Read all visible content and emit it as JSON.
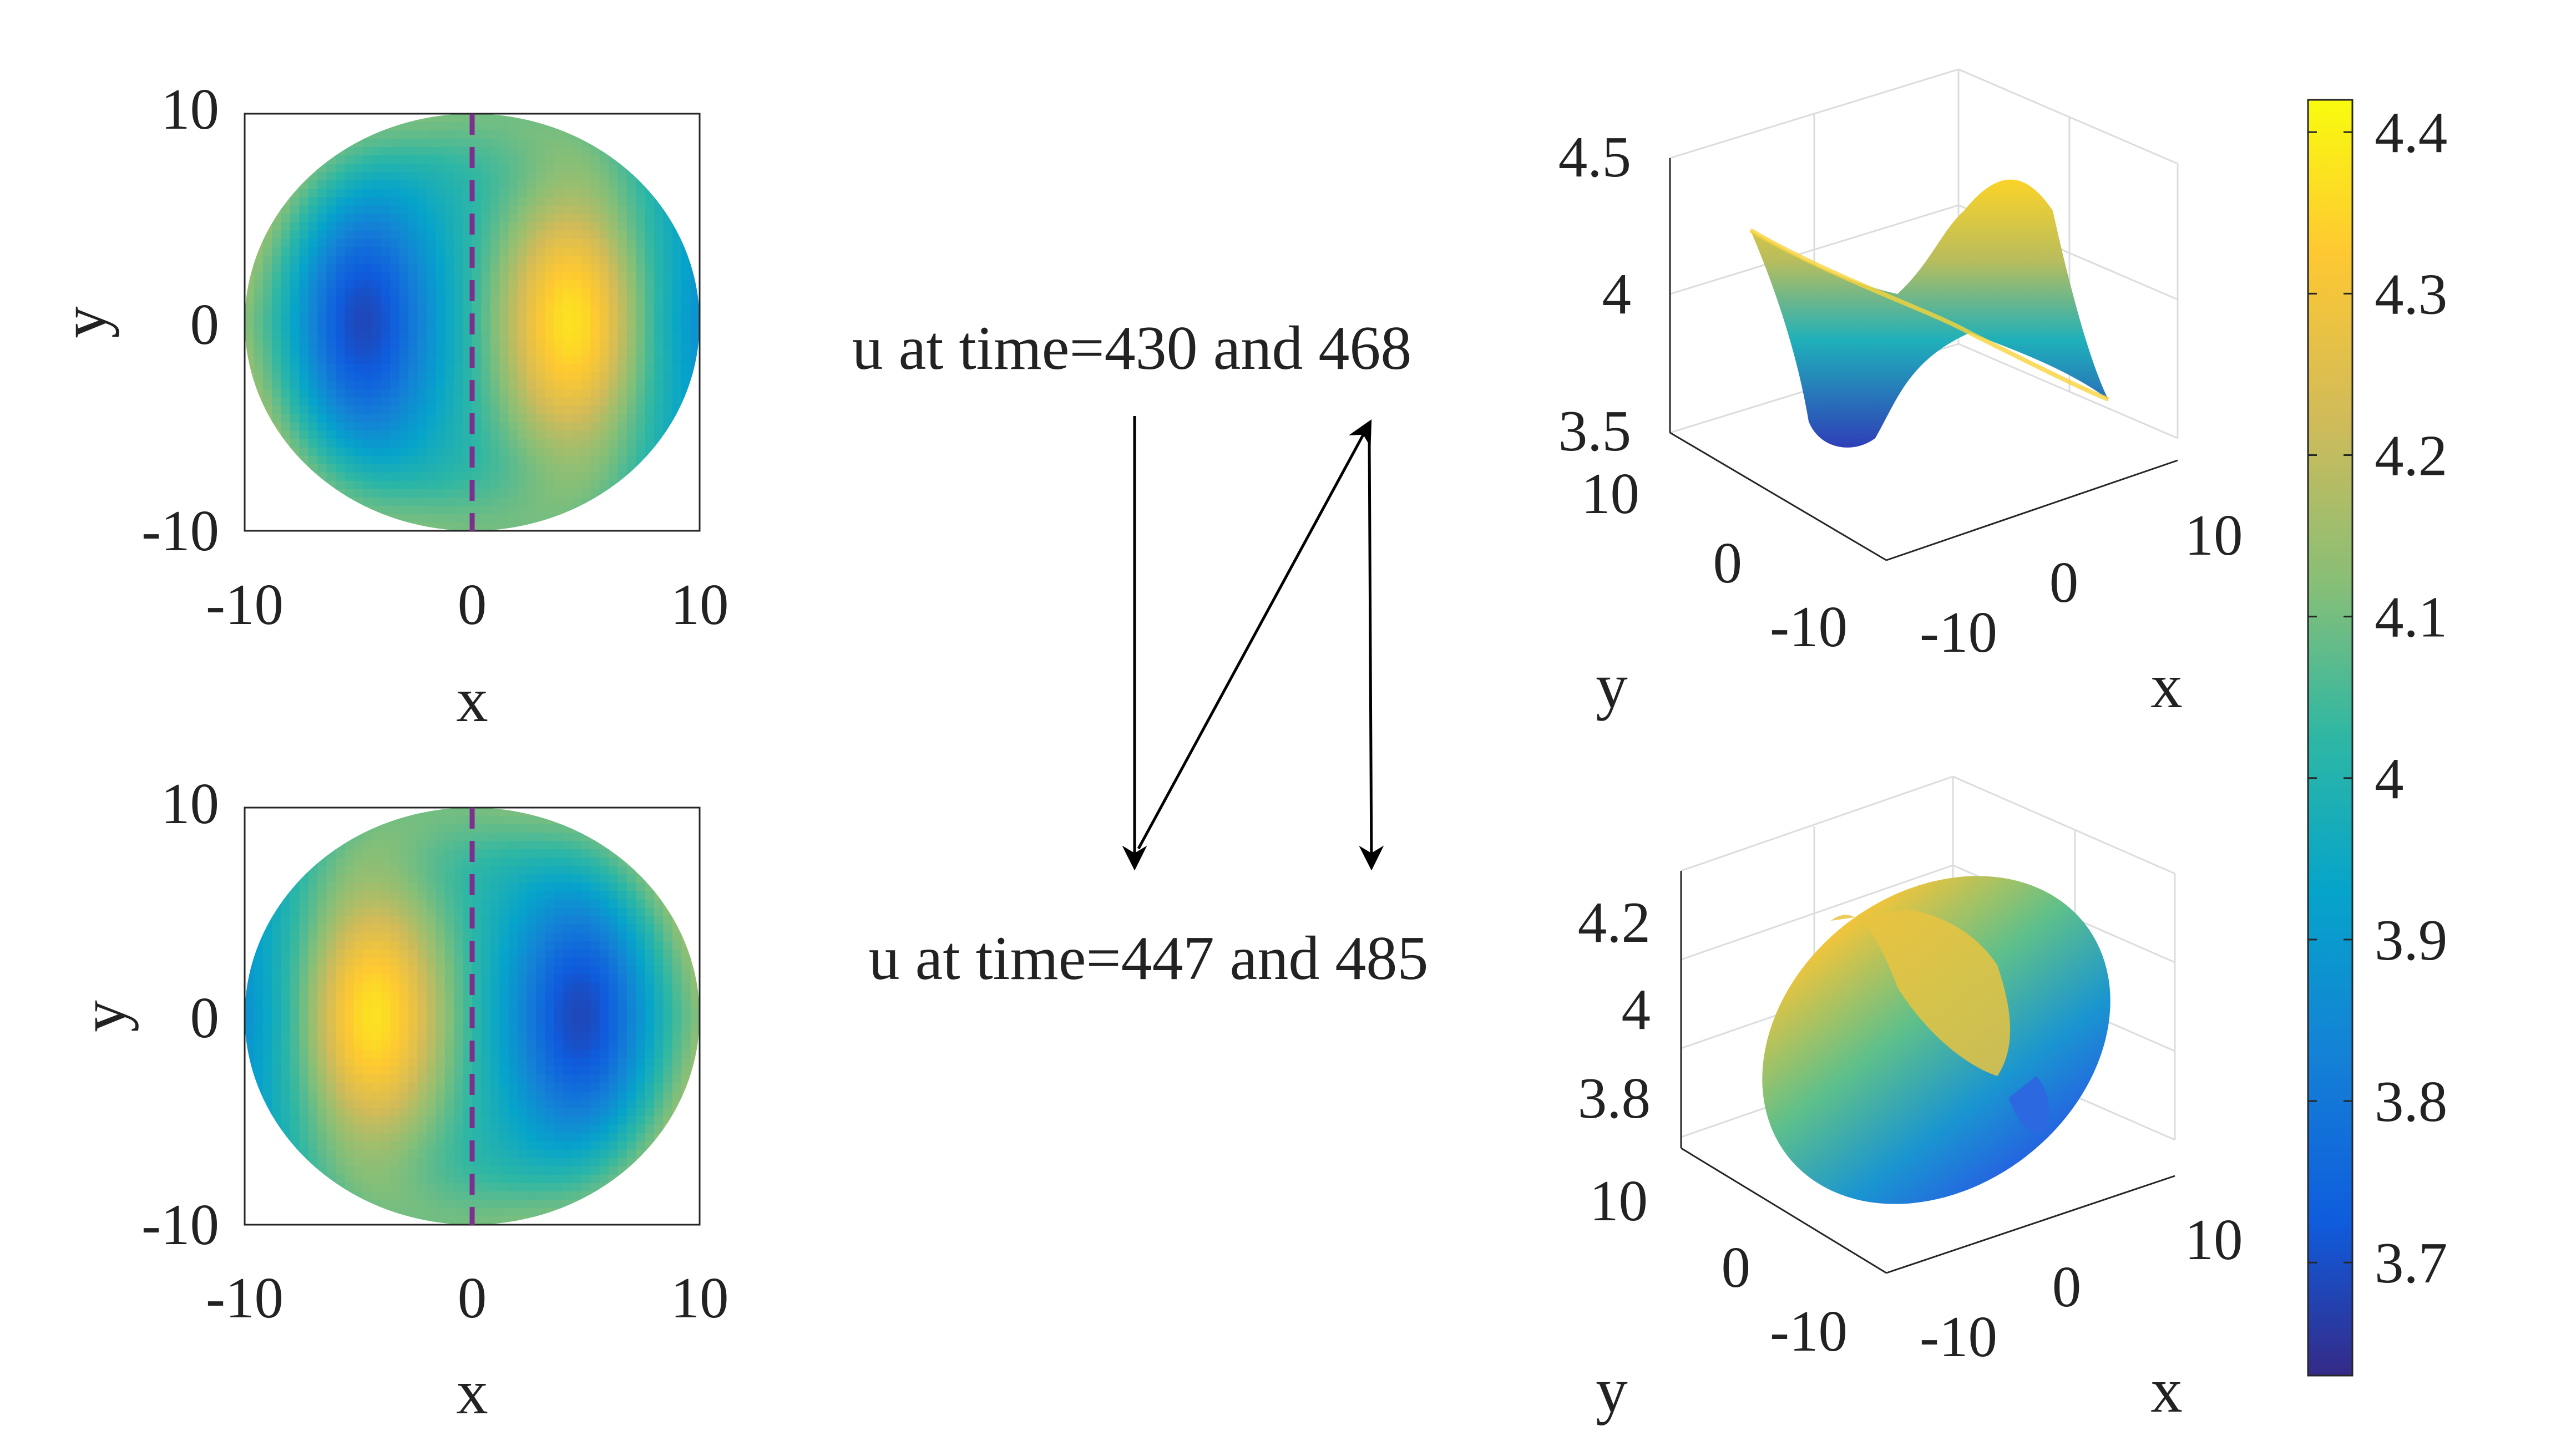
{
  "colormap": {
    "name": "parula",
    "stops": [
      "#352a87",
      "#0f5cdd",
      "#1481d6",
      "#06a4ca",
      "#2eb7a4",
      "#87bf77",
      "#d1bb59",
      "#fec832",
      "#f9fb0e"
    ]
  },
  "colorbar": {
    "ticks": [
      "4.4",
      "4.3",
      "4.2",
      "4.1",
      "4",
      "3.9",
      "3.8",
      "3.7"
    ],
    "tick_values": [
      4.4,
      4.3,
      4.2,
      4.1,
      4.0,
      3.9,
      3.8,
      3.7
    ],
    "range": [
      3.63,
      4.42
    ]
  },
  "annotations": {
    "top_text": "u at time=430 and 468",
    "bottom_text": "u at time=447 and 485"
  },
  "chart_data": [
    {
      "type": "heatmap",
      "panel": "top-left",
      "title": "",
      "xlabel": "x",
      "ylabel": "y",
      "xlim": [
        -10,
        10
      ],
      "ylim": [
        -10,
        10
      ],
      "xticks": [
        "-10",
        "0",
        "10"
      ],
      "yticks": [
        "10",
        "0",
        "-10"
      ],
      "domain": "disk radius 10",
      "field": {
        "baseline": 4.0,
        "blobs": [
          {
            "x": 4.5,
            "y": 0,
            "amplitude": 0.4,
            "note": "max ~4.4 (yellow)"
          },
          {
            "x": -5,
            "y": 0,
            "amplitude": -0.35,
            "note": "min ~3.65 (dark blue)"
          }
        ]
      },
      "dashed_line": {
        "x": 0,
        "color": "#7e2f8e"
      }
    },
    {
      "type": "heatmap",
      "panel": "bottom-left",
      "title": "",
      "xlabel": "x",
      "ylabel": "y",
      "xlim": [
        -10,
        10
      ],
      "ylim": [
        -10,
        10
      ],
      "xticks": [
        "-10",
        "0",
        "10"
      ],
      "yticks": [
        "10",
        "0",
        "-10"
      ],
      "domain": "disk radius 10",
      "field": {
        "baseline": 4.0,
        "blobs": [
          {
            "x": -4.5,
            "y": 0,
            "amplitude": 0.4,
            "note": "max ~4.4 (yellow)"
          },
          {
            "x": 5,
            "y": 0,
            "amplitude": -0.35,
            "note": "min ~3.65 (dark blue)"
          }
        ]
      },
      "dashed_line": {
        "x": 0,
        "color": "#7e2f8e"
      }
    },
    {
      "type": "surface",
      "panel": "top-right",
      "title": "",
      "xlabel": "x",
      "ylabel": "y",
      "zlim": [
        3.5,
        4.5
      ],
      "zticks": [
        "4.5",
        "4",
        "3.5"
      ],
      "xticks": [
        "-10",
        "0",
        "10"
      ],
      "yticks": [
        "10",
        "0",
        "-10"
      ]
    },
    {
      "type": "surface",
      "panel": "bottom-right",
      "title": "",
      "xlabel": "x",
      "ylabel": "y",
      "zlim": [
        3.7,
        4.3
      ],
      "zticks": [
        "4.2",
        "4",
        "3.8"
      ],
      "xticks": [
        "-10",
        "0",
        "10"
      ],
      "yticks": [
        "10",
        "0",
        "-10"
      ]
    }
  ]
}
